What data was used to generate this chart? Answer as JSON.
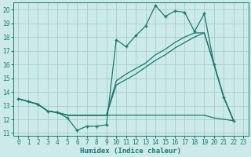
{
  "xlabel": "Humidex (Indice chaleur)",
  "background_color": "#cceaea",
  "grid_color": "#aacccc",
  "line_color": "#1a7a6a",
  "xlim": [
    -0.5,
    23.5
  ],
  "ylim": [
    10.8,
    20.5
  ],
  "yticks": [
    11,
    12,
    13,
    14,
    15,
    16,
    17,
    18,
    19,
    20
  ],
  "xticks": [
    0,
    1,
    2,
    3,
    4,
    5,
    6,
    7,
    8,
    9,
    10,
    11,
    12,
    13,
    14,
    15,
    16,
    17,
    18,
    19,
    20,
    21,
    22,
    23
  ],
  "series": [
    {
      "x": [
        0,
        1,
        2,
        3,
        4,
        5,
        6,
        7,
        8,
        9,
        10,
        11,
        12,
        13,
        14,
        15,
        16,
        17,
        18,
        19,
        20,
        21,
        22
      ],
      "y": [
        13.5,
        13.3,
        13.1,
        12.6,
        12.5,
        12.1,
        11.2,
        11.5,
        11.5,
        11.6,
        17.8,
        17.3,
        18.1,
        18.8,
        20.3,
        19.5,
        19.9,
        19.8,
        18.4,
        19.7,
        16.0,
        13.6,
        11.9
      ],
      "marker": "+",
      "markersize": 3.5,
      "linewidth": 0.9
    },
    {
      "x": [
        0,
        1,
        2,
        3,
        4,
        5,
        6,
        7,
        8,
        9,
        10,
        11,
        12,
        13,
        14,
        15,
        16,
        17,
        18,
        19,
        20,
        21,
        22
      ],
      "y": [
        13.5,
        13.3,
        13.1,
        12.6,
        12.5,
        12.3,
        12.3,
        12.3,
        12.3,
        12.3,
        14.8,
        15.3,
        15.7,
        16.1,
        16.7,
        17.1,
        17.6,
        18.0,
        18.3,
        18.3,
        16.0,
        13.6,
        11.9
      ],
      "marker": null,
      "markersize": 0,
      "linewidth": 0.9
    },
    {
      "x": [
        0,
        1,
        2,
        3,
        4,
        5,
        6,
        7,
        8,
        9,
        10,
        11,
        12,
        13,
        14,
        15,
        16,
        17,
        18,
        19,
        20,
        21,
        22
      ],
      "y": [
        13.5,
        13.3,
        13.1,
        12.6,
        12.5,
        12.3,
        12.3,
        12.3,
        12.3,
        12.3,
        14.5,
        14.9,
        15.3,
        15.8,
        16.3,
        16.7,
        17.2,
        17.6,
        18.0,
        18.3,
        16.0,
        13.6,
        11.9
      ],
      "marker": null,
      "markersize": 0,
      "linewidth": 0.9
    },
    {
      "x": [
        0,
        1,
        2,
        3,
        4,
        5,
        6,
        7,
        8,
        9,
        10,
        11,
        12,
        13,
        14,
        15,
        16,
        17,
        18,
        19,
        20,
        21,
        22
      ],
      "y": [
        13.5,
        13.3,
        13.1,
        12.6,
        12.5,
        12.3,
        12.3,
        12.3,
        12.3,
        12.3,
        12.3,
        12.3,
        12.3,
        12.3,
        12.3,
        12.3,
        12.3,
        12.3,
        12.3,
        12.3,
        12.1,
        12.0,
        11.9
      ],
      "marker": null,
      "markersize": 0,
      "linewidth": 0.9
    }
  ],
  "tick_fontsize": 5.5,
  "label_fontsize": 6.5,
  "tick_fontfamily": "monospace"
}
